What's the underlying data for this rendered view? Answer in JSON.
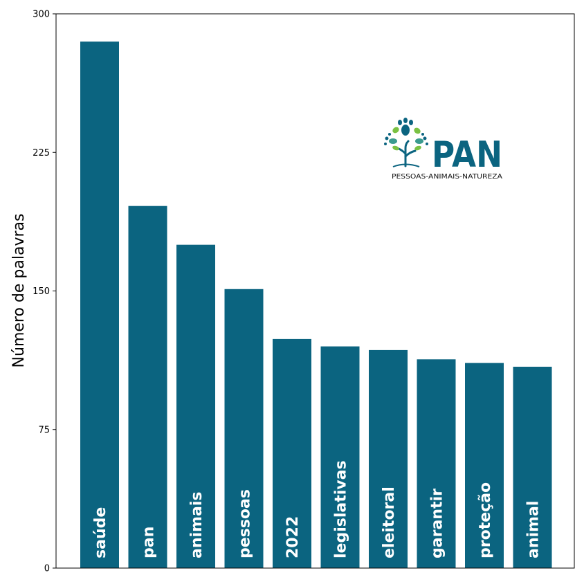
{
  "chart_data": {
    "type": "bar",
    "orientation": "vertical",
    "categories": [
      "saúde",
      "pan",
      "animais",
      "pessoas",
      "2022",
      "legislativas",
      "eleitoral",
      "garantir",
      "proteção",
      "animal"
    ],
    "values": [
      285,
      196,
      175,
      151,
      124,
      120,
      118,
      113,
      111,
      109
    ],
    "ylabel": "Número de palavras",
    "xlabel": "",
    "ylim": [
      0,
      300
    ],
    "yticks": [
      "0",
      "75",
      "150",
      "225",
      "300"
    ],
    "ytick_values": [
      0,
      75,
      150,
      225,
      300
    ],
    "bar_color": "#0b6480",
    "category_labels_inside_bars": true,
    "grid": false
  },
  "logo": {
    "name": "PAN",
    "tagline": "PESSOAS-ANIMAIS-NATUREZA",
    "icon": "tree-icon",
    "colors": {
      "primary": "#0b6480",
      "green": "#7ac143"
    }
  }
}
